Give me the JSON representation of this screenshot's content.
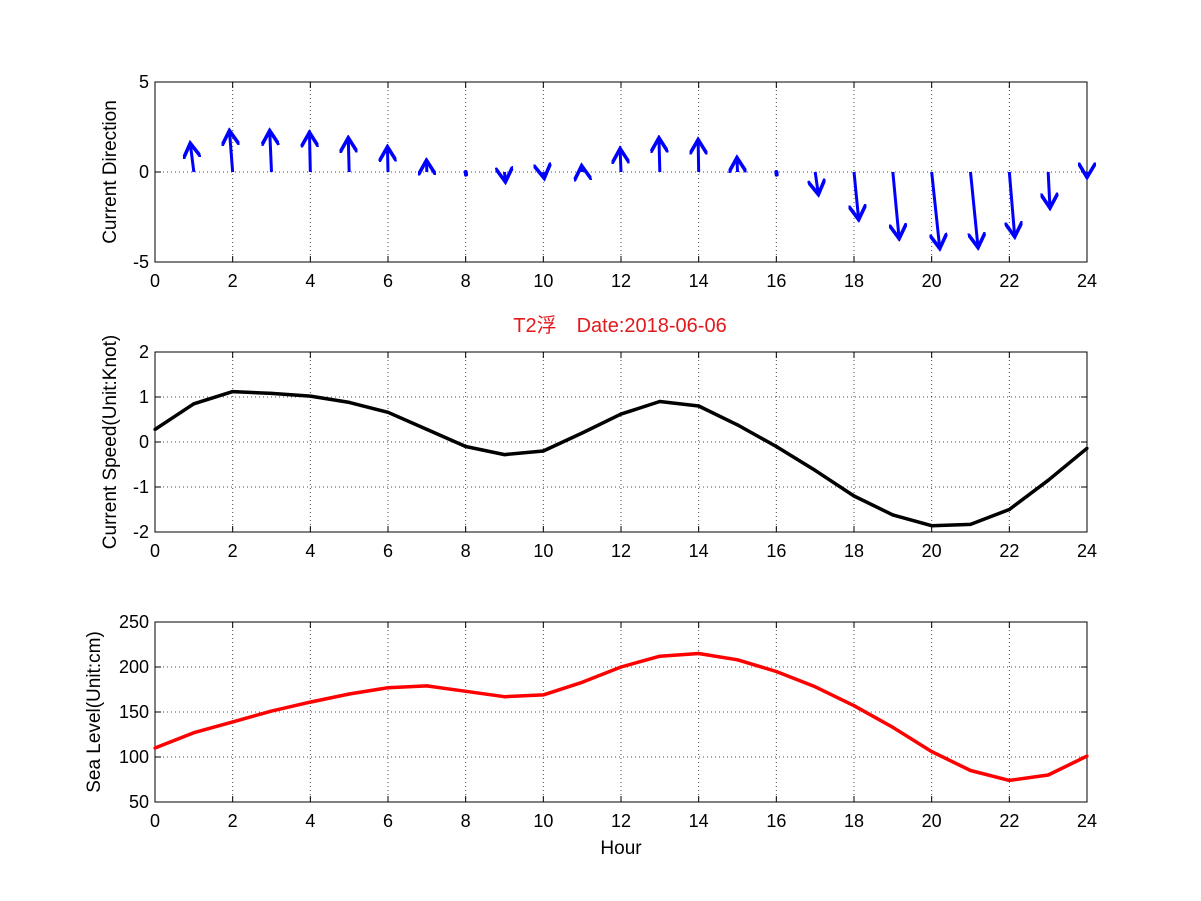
{
  "figure": {
    "title": "T2浮　Date:2018-06-06",
    "title_color": "#e31a1c",
    "background": "#ffffff"
  },
  "chart_data": [
    {
      "type": "quiver",
      "ylabel": "Current Direction",
      "xlabel": "",
      "xlim": [
        0,
        24
      ],
      "ylim": [
        -5,
        5
      ],
      "xticks": [
        0,
        2,
        4,
        6,
        8,
        10,
        12,
        14,
        16,
        18,
        20,
        22,
        24
      ],
      "yticks": [
        -5,
        0,
        5
      ],
      "grid": true,
      "color": "#0000ff",
      "arrows": [
        {
          "x": 1,
          "u": -0.2,
          "v": 1.6
        },
        {
          "x": 2,
          "u": -0.18,
          "v": 2.3
        },
        {
          "x": 3,
          "u": -0.1,
          "v": 2.3
        },
        {
          "x": 4,
          "u": -0.05,
          "v": 2.2
        },
        {
          "x": 5,
          "u": -0.05,
          "v": 1.9
        },
        {
          "x": 6,
          "u": -0.03,
          "v": 1.4
        },
        {
          "x": 7,
          "u": -0.02,
          "v": 0.65
        },
        {
          "x": 8,
          "u": 0.02,
          "v": -0.15
        },
        {
          "x": 9,
          "u": 0.05,
          "v": -0.55
        },
        {
          "x": 10,
          "u": 0.05,
          "v": -0.35
        },
        {
          "x": 11,
          "u": -0.03,
          "v": 0.35
        },
        {
          "x": 12,
          "u": -0.05,
          "v": 1.3
        },
        {
          "x": 13,
          "u": -0.05,
          "v": 1.9
        },
        {
          "x": 14,
          "u": -0.03,
          "v": 1.8
        },
        {
          "x": 15,
          "u": -0.03,
          "v": 0.8
        },
        {
          "x": 16,
          "u": 0.02,
          "v": -0.15
        },
        {
          "x": 17,
          "u": 0.18,
          "v": -1.25
        },
        {
          "x": 18,
          "u": 0.26,
          "v": -2.65
        },
        {
          "x": 19,
          "u": 0.35,
          "v": -3.7
        },
        {
          "x": 20,
          "u": 0.45,
          "v": -4.25
        },
        {
          "x": 21,
          "u": 0.42,
          "v": -4.2
        },
        {
          "x": 22,
          "u": 0.3,
          "v": -3.6
        },
        {
          "x": 23,
          "u": 0.1,
          "v": -2.0
        },
        {
          "x": 24,
          "u": 0.0,
          "v": -0.3
        }
      ]
    },
    {
      "type": "line",
      "ylabel": "Current Speed(Unit:Knot)",
      "xlabel": "",
      "xlim": [
        0,
        24
      ],
      "ylim": [
        -2,
        2
      ],
      "xticks": [
        0,
        2,
        4,
        6,
        8,
        10,
        12,
        14,
        16,
        18,
        20,
        22,
        24
      ],
      "yticks": [
        -2,
        -1,
        0,
        1,
        2
      ],
      "grid": true,
      "series": [
        {
          "color": "#000000",
          "x": [
            0,
            1,
            2,
            3,
            4,
            5,
            6,
            7,
            8,
            9,
            10,
            11,
            12,
            13,
            14,
            15,
            16,
            17,
            18,
            19,
            20,
            21,
            22,
            23,
            24
          ],
          "values": [
            0.28,
            0.85,
            1.12,
            1.08,
            1.02,
            0.88,
            0.66,
            0.28,
            -0.1,
            -0.28,
            -0.2,
            0.2,
            0.62,
            0.9,
            0.8,
            0.38,
            -0.1,
            -0.63,
            -1.2,
            -1.62,
            -1.86,
            -1.83,
            -1.5,
            -0.85,
            -0.14
          ]
        }
      ]
    },
    {
      "type": "line",
      "ylabel": "Sea Level(Unit:cm)",
      "xlabel": "Hour",
      "xlim": [
        0,
        24
      ],
      "ylim": [
        50,
        250
      ],
      "xticks": [
        0,
        2,
        4,
        6,
        8,
        10,
        12,
        14,
        16,
        18,
        20,
        22,
        24
      ],
      "yticks": [
        50,
        100,
        150,
        200,
        250
      ],
      "grid": true,
      "series": [
        {
          "color": "#ff0000",
          "x": [
            0,
            1,
            2,
            3,
            4,
            5,
            6,
            7,
            8,
            9,
            10,
            11,
            12,
            13,
            14,
            15,
            16,
            17,
            18,
            19,
            20,
            21,
            22,
            23,
            24
          ],
          "values": [
            110,
            127,
            139,
            151,
            161,
            170,
            177,
            179,
            173,
            167,
            169,
            183,
            200,
            212,
            215,
            208,
            195,
            178,
            157,
            133,
            106,
            85,
            74,
            80,
            101
          ]
        }
      ]
    }
  ]
}
